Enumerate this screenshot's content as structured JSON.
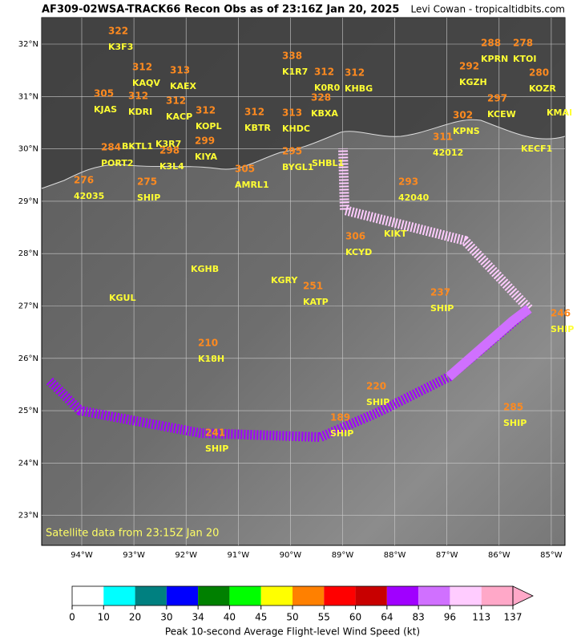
{
  "header": {
    "title": "AF309-02WSA-TRACK66 Recon Obs as of 23:16Z Jan 20, 2025",
    "credit": "Levi Cowan - tropicaltidbits.com"
  },
  "map": {
    "lat_ticks": [
      {
        "value": 32,
        "label": "32°N"
      },
      {
        "value": 31,
        "label": "31°N"
      },
      {
        "value": 30,
        "label": "30°N"
      },
      {
        "value": 29,
        "label": "29°N"
      },
      {
        "value": 28,
        "label": "28°N"
      },
      {
        "value": 27,
        "label": "27°N"
      },
      {
        "value": 26,
        "label": "26°N"
      },
      {
        "value": 25,
        "label": "25°N"
      },
      {
        "value": 24,
        "label": "24°N"
      },
      {
        "value": 23,
        "label": "23°N"
      }
    ],
    "lon_ticks": [
      {
        "value": -94,
        "label": "94°W"
      },
      {
        "value": -93,
        "label": "93°W"
      },
      {
        "value": -92,
        "label": "92°W"
      },
      {
        "value": -91,
        "label": "91°W"
      },
      {
        "value": -90,
        "label": "90°W"
      },
      {
        "value": -89,
        "label": "89°W"
      },
      {
        "value": -88,
        "label": "88°W"
      },
      {
        "value": -87,
        "label": "87°W"
      },
      {
        "value": -86,
        "label": "86°W"
      },
      {
        "value": -85,
        "label": "85°W"
      }
    ],
    "stations": [
      {
        "value": "322",
        "id": "K3F3"
      },
      {
        "value": "312",
        "id": "KAQV"
      },
      {
        "value": "313",
        "id": "KAEX"
      },
      {
        "value": "305",
        "id": "KJAS"
      },
      {
        "value": "312",
        "id": "KDRI"
      },
      {
        "value": "312",
        "id": "KOPL"
      },
      {
        "value": "312",
        "id": "KACP"
      },
      {
        "value": "312",
        "id": "KBTR"
      },
      {
        "value": "313",
        "id": "KHDC"
      },
      {
        "value": "338",
        "id": "K1R7"
      },
      {
        "value": "328",
        "id": "KBXA"
      },
      {
        "value": "312",
        "id": "K0R0"
      },
      {
        "value": "312",
        "id": "KHBG"
      },
      {
        "value": "288",
        "id": "KPRN"
      },
      {
        "value": "278",
        "id": "KTOI"
      },
      {
        "value": "292",
        "id": "KGZH"
      },
      {
        "value": "280",
        "id": "KOZR"
      },
      {
        "value": "297",
        "id": "KCEW"
      },
      {
        "value": "302",
        "id": "KPNS"
      },
      {
        "value": "311",
        "id": "42012"
      },
      {
        "value": "284",
        "id": "PORT2"
      },
      {
        "value": "298",
        "id": "K3L4"
      },
      {
        "value": "299",
        "id": "KIYA"
      },
      {
        "value": "276",
        "id": "42035"
      },
      {
        "value": "275",
        "id": "SHIP"
      },
      {
        "value": "305",
        "id": "AMRL1"
      },
      {
        "value": "295",
        "id": "BYGL1"
      },
      {
        "value": "293",
        "id": "42040"
      },
      {
        "value": "306",
        "id": "KCYD"
      },
      {
        "value": "251",
        "id": "KATP"
      },
      {
        "value": "237",
        "id": "SHIP"
      },
      {
        "value": "246",
        "id": "SHIP"
      },
      {
        "value": "210",
        "id": "K18H"
      },
      {
        "value": "220",
        "id": "SHIP"
      },
      {
        "value": "189",
        "id": "SHIP"
      },
      {
        "value": "285",
        "id": "SHIP"
      },
      {
        "value": "241",
        "id": "SHIP"
      }
    ],
    "other_ids": [
      "KMAI",
      "KECF1",
      "BKTL1",
      "K3R7",
      "SHBL1",
      "KIKT",
      "KGHB",
      "KGUL",
      "KGRY"
    ],
    "note": "Satellite data from 23:15Z Jan 20"
  },
  "colorbar": {
    "ticks": [
      0,
      10,
      20,
      30,
      34,
      40,
      45,
      50,
      55,
      60,
      64,
      83,
      96,
      113,
      137
    ],
    "colors": [
      "#ffffff",
      "#00ffff",
      "#008080",
      "#0000ff",
      "#008000",
      "#00ff00",
      "#ffff00",
      "#ff8000",
      "#ff0000",
      "#c80000",
      "#a000ff",
      "#d070ff",
      "#ffccff",
      "#ffa8c8"
    ],
    "label": "Peak 10-second Average Flight-level Wind Speed (kt)"
  }
}
